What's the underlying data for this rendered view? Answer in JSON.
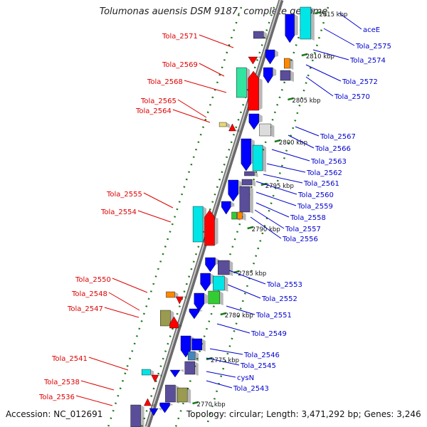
{
  "title": "Tolumonas auensis DSM 9187, complete genome",
  "accession": "Accession: NC_012691",
  "topology": "Topology: circular; Length: 3,471,292 bp; Genes: 3,246",
  "colors": {
    "left_label": "#dd0000",
    "right_label": "#0000cc",
    "backbone": "#9a9a9a",
    "track_dots": "#1a7a1a",
    "plus_gene": "#ff0000",
    "minus_gene": "#0000ff",
    "cyan": "#00e5e5",
    "purple": "#5a4e9a",
    "green": "#33cc33",
    "olive": "#9a9a50",
    "orange": "#ff8800",
    "mint": "#33e3a0",
    "light": "#dcdcdc",
    "yellow": "#e8d870"
  },
  "scale_labels": [
    "2815 kbp",
    "2810 kbp",
    "2805 kbp",
    "2800 kbp",
    "2795 kbp",
    "2790 kbp",
    "2785 kbp",
    "2780 kbp",
    "2775 kbp",
    "2770 kbp"
  ],
  "left_labels": [
    "Tola_2571",
    "Tola_2569",
    "Tola_2568",
    "Tola_2565",
    "Tola_2564",
    "Tola_2555",
    "Tola_2554",
    "Tola_2550",
    "Tola_2548",
    "Tola_2547",
    "Tola_2541",
    "Tola_2538",
    "Tola_2536"
  ],
  "right_labels": [
    "aceE",
    "Tola_2575",
    "Tola_2574",
    "Tola_2572",
    "Tola_2570",
    "Tola_2567",
    "Tola_2566",
    "Tola_2563",
    "Tola_2562",
    "Tola_2561",
    "Tola_2560",
    "Tola_2559",
    "Tola_2558",
    "Tola_2557",
    "Tola_2556",
    "Tola_2553",
    "Tola_2552",
    "Tola_2551",
    "Tola_2549",
    "Tola_2546",
    "Tola_2545",
    "cysN",
    "Tola_2543"
  ]
}
